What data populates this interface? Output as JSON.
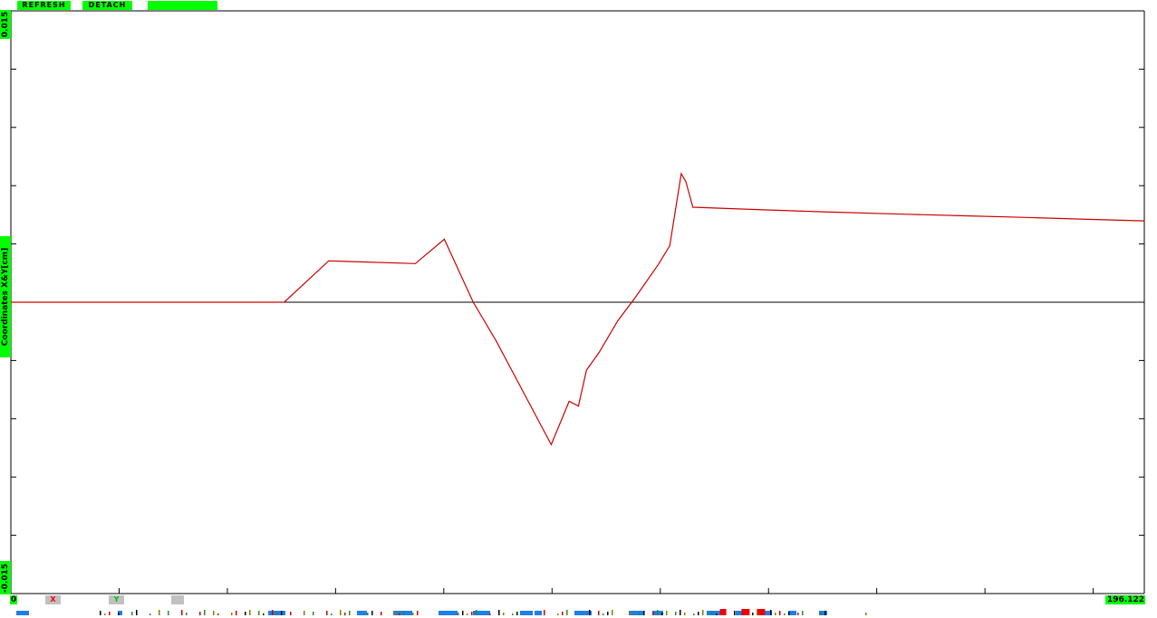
{
  "toolbar": {
    "refresh_label": "REFRESH",
    "detach_label": "DETACH",
    "blank_label": ""
  },
  "axis": {
    "y_max_label": "0.015",
    "y_min_label": "-0.015",
    "y_title": "Coordinates X&Y[cm]",
    "x_min_label": "0",
    "x_max_label": "196.122"
  },
  "legend_chips": {
    "x_label": "X",
    "y_label": "Y",
    "third_label": ""
  },
  "colors": {
    "accent": "#00ff00",
    "series_x": "#cc0000",
    "zero_line": "#000000",
    "event_blue": "#1e7fe8",
    "event_red": "#ee0000"
  },
  "chart_data": {
    "type": "line",
    "xlim": [
      0,
      196.122
    ],
    "ylim": [
      -0.015,
      0.015
    ],
    "grid": false,
    "series": [
      {
        "name": "X",
        "points": [
          [
            0,
            0
          ],
          [
            47.3,
            0
          ],
          [
            55.0,
            0.00213
          ],
          [
            70.0,
            0.00199
          ],
          [
            75.0,
            0.00324
          ],
          [
            80.0,
            0.0
          ],
          [
            84.0,
            -0.00201
          ],
          [
            93.5,
            -0.00733
          ],
          [
            96.6,
            -0.0051
          ],
          [
            98.2,
            -0.00535
          ],
          [
            99.6,
            -0.0035
          ],
          [
            101.8,
            -0.00258
          ],
          [
            105.0,
            -0.00096
          ],
          [
            108.0,
            0.00023
          ],
          [
            112.0,
            0.00193
          ],
          [
            114.0,
            0.0029
          ],
          [
            116.0,
            0.00662
          ],
          [
            116.8,
            0.00621
          ],
          [
            118.0,
            0.00489
          ],
          [
            128.0,
            0.00478
          ],
          [
            140.0,
            0.00466
          ],
          [
            155.0,
            0.00453
          ],
          [
            165.0,
            0.00445
          ],
          [
            175.0,
            0.00437
          ],
          [
            185.0,
            0.00428
          ],
          [
            196.122,
            0.00419
          ]
        ]
      }
    ],
    "x_axis_ticks": [
      0,
      18.73,
      37.46,
      56.18,
      74.91,
      93.64,
      112.37,
      131.1,
      149.82,
      168.55,
      187.28
    ],
    "event_strip": {
      "blue_blocks": [
        [
          1,
          14
        ],
        [
          57,
          5
        ],
        [
          140,
          19
        ],
        [
          189,
          11
        ],
        [
          209,
          21
        ],
        [
          234,
          21
        ],
        [
          253,
          19
        ],
        [
          279,
          14
        ],
        [
          287,
          8
        ],
        [
          309,
          19
        ],
        [
          339,
          16
        ],
        [
          352,
          12
        ],
        [
          382,
          15
        ],
        [
          398,
          12
        ],
        [
          414,
          8
        ],
        [
          427,
          9
        ],
        [
          444,
          9
        ]
      ],
      "red_blocks": [
        [
          458,
          7
        ],
        [
          472,
          9
        ],
        [
          482,
          9
        ]
      ]
    }
  }
}
